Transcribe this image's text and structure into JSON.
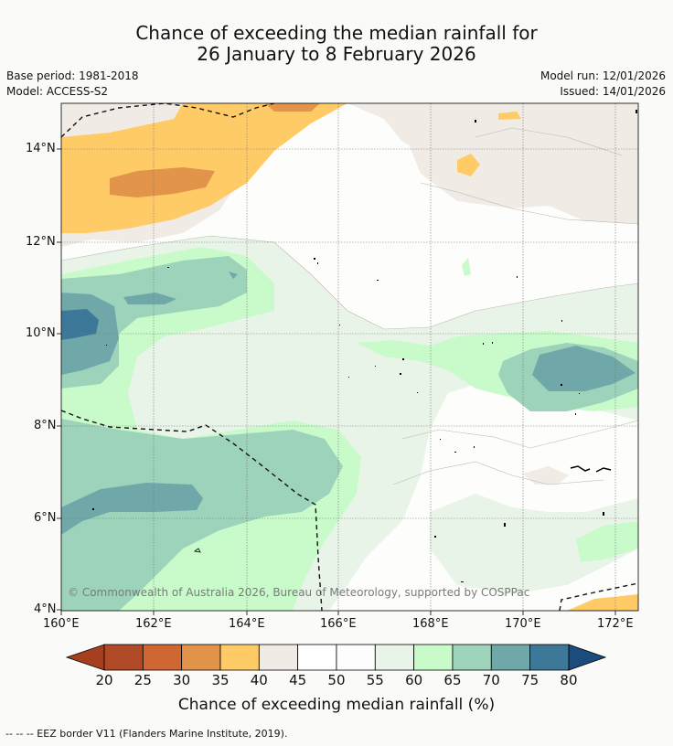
{
  "title": {
    "line1": "Chance of exceeding the median rainfall for",
    "line2": "26 January to 8 February 2026"
  },
  "meta": {
    "base_period": "Base period: 1981-2018",
    "model": "Model: ACCESS-S2",
    "model_run": "Model run: 12/01/2026",
    "issued": "Issued: 14/01/2026"
  },
  "axes": {
    "lat_labels": [
      "14°N",
      "12°N",
      "10°N",
      "8°N",
      "6°N",
      "4°N"
    ],
    "lon_labels": [
      "160°E",
      "162°E",
      "164°E",
      "166°E",
      "168°E",
      "170°E",
      "172°E"
    ],
    "lat_range": [
      4,
      15
    ],
    "lon_range": [
      160,
      172.5
    ]
  },
  "copyright": "© Commonwealth of Australia 2026, Bureau of Meteorology, supported by COSPPac",
  "colorbar": {
    "labels": [
      "20",
      "25",
      "30",
      "35",
      "40",
      "45",
      "50",
      "55",
      "60",
      "65",
      "70",
      "75",
      "80"
    ],
    "colors": [
      "#a53f1f",
      "#b04a26",
      "#cf6733",
      "#e1944a",
      "#fecb67",
      "#f1ebe6",
      "#ffffff",
      "#fdfdfd",
      "#e8f4e8",
      "#c9fbca",
      "#9dd2bb",
      "#70a8aa",
      "#3e7898",
      "#1c4c7d"
    ],
    "title": "Chance of exceeding median rainfall (%)"
  },
  "footer": "--  --  -- EEZ border V11 (Flanders Marine Institute, 2019)."
}
